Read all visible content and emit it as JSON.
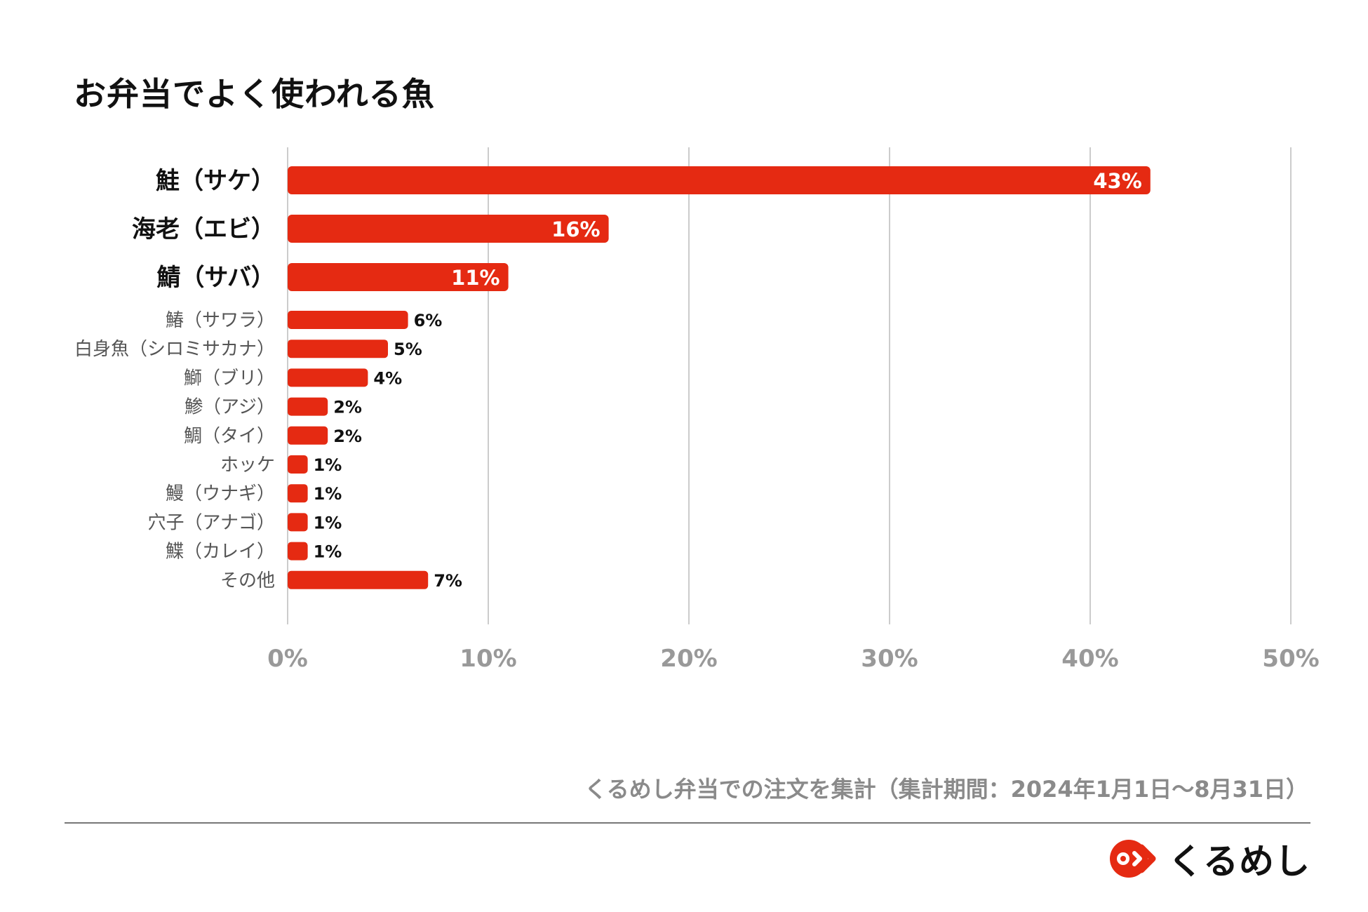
{
  "title": "お弁当でよく使われる魚",
  "footnote": "くるめし弁当での注文を集計（集計期間：2024年1月1日〜8月31日）",
  "logo": {
    "text": "くるめし",
    "icon": "kurumeshi-logo-icon"
  },
  "colors": {
    "bar": "#e52a12",
    "grid": "#cccccc",
    "axis_text": "#999999",
    "label_text": "#111111",
    "minor_label_text": "#555555"
  },
  "chart_data": {
    "type": "bar",
    "orientation": "horizontal",
    "title": "お弁当でよく使われる魚",
    "categories": [
      "鮭（サケ）",
      "海老（エビ）",
      "鯖（サバ）",
      "鰆（サワラ）",
      "白身魚（シロミサカナ）",
      "鰤（ブリ）",
      "鯵（アジ）",
      "鯛（タイ）",
      "ホッケ",
      "鰻（ウナギ）",
      "穴子（アナゴ）",
      "鰈（カレイ）",
      "その他"
    ],
    "values": [
      43,
      16,
      11,
      6,
      5,
      4,
      2,
      2,
      1,
      1,
      1,
      1,
      7
    ],
    "value_labels": [
      "43%",
      "16%",
      "11%",
      "6%",
      "5%",
      "4%",
      "2%",
      "2%",
      "1%",
      "1%",
      "1%",
      "1%",
      "7%"
    ],
    "emphasized_top": 3,
    "xlim": [
      0,
      50
    ],
    "x_ticks": [
      0,
      10,
      20,
      30,
      40,
      50
    ],
    "x_tick_labels": [
      "0%",
      "10%",
      "20%",
      "30%",
      "40%",
      "50%"
    ],
    "grid": true,
    "legend": "none"
  }
}
